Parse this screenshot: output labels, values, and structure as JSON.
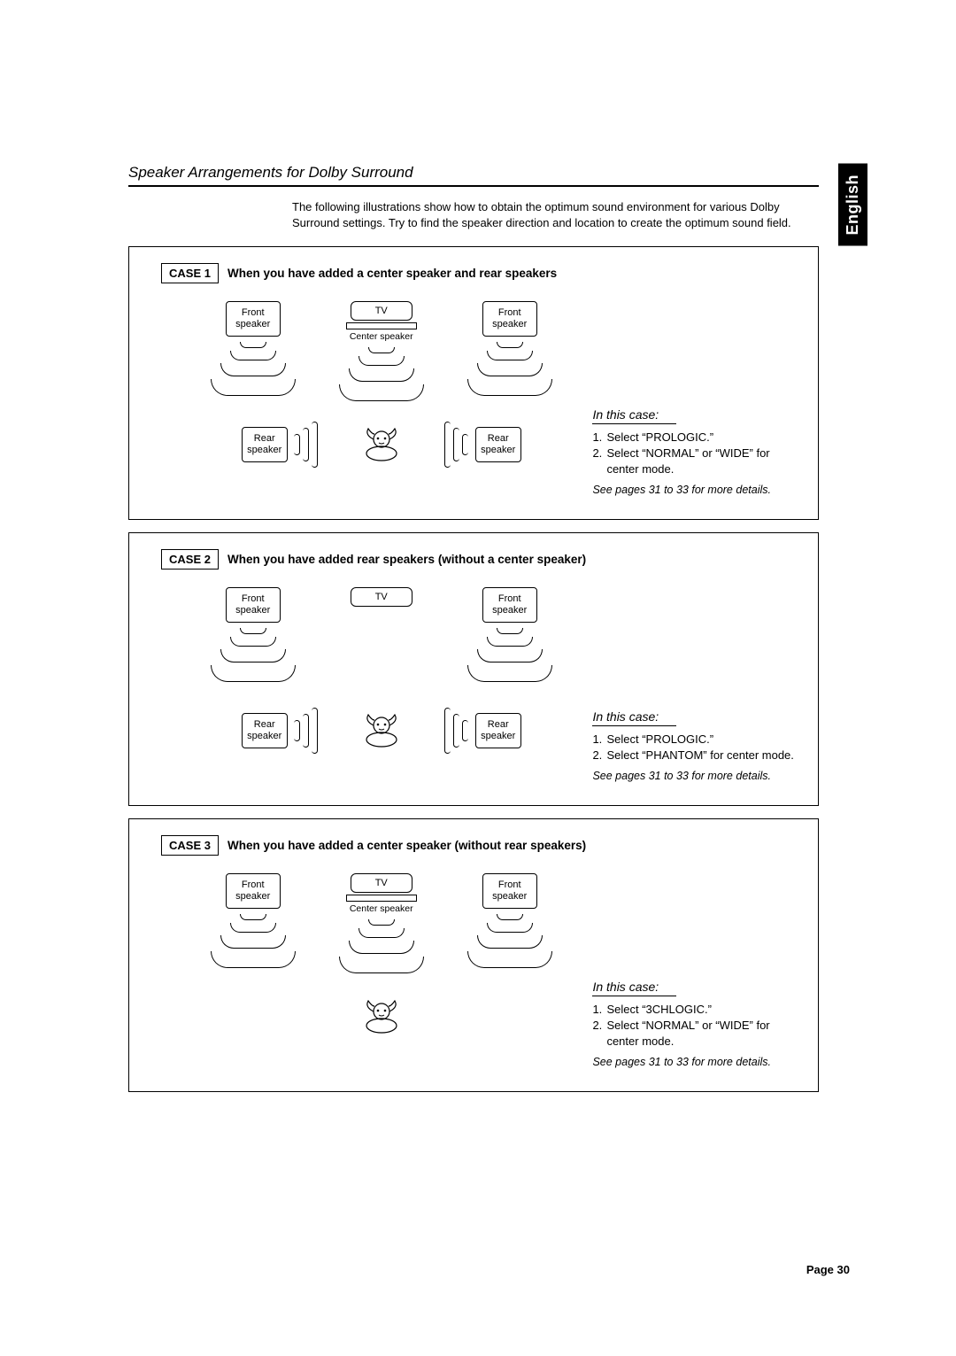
{
  "lang_tab": "English",
  "section_title": "Speaker Arrangements for Dolby Surround",
  "intro": "The following illustrations show how to obtain the optimum sound environment for various Dolby Surround settings. Try to find the speaker direction and location to create the optimum sound field.",
  "labels": {
    "front_speaker_l1": "Front",
    "front_speaker_l2": "speaker",
    "tv": "TV",
    "center_speaker": "Center speaker",
    "rear_l1": "Rear",
    "rear_l2": "speaker"
  },
  "cases": [
    {
      "badge": "CASE 1",
      "title": "When you have added a center speaker and rear speakers",
      "diagram": {
        "center": true,
        "rear": true
      },
      "in_this_case": "In this case:",
      "steps": [
        {
          "n": "1.",
          "t": "Select “PROLOGIC.”"
        },
        {
          "n": "2.",
          "t": "Select “NORMAL” or “WIDE” for center mode."
        }
      ],
      "see": "See pages 31 to 33 for more details."
    },
    {
      "badge": "CASE 2",
      "title": "When you have added rear speakers (without a center speaker)",
      "diagram": {
        "center": false,
        "rear": true
      },
      "in_this_case": "In this case:",
      "steps": [
        {
          "n": "1.",
          "t": "Select “PROLOGIC.”"
        },
        {
          "n": "2.",
          "t": "Select “PHANTOM” for center mode."
        }
      ],
      "see": "See pages 31 to 33 for more details."
    },
    {
      "badge": "CASE 3",
      "title": "When you have added a center speaker (without rear speakers)",
      "diagram": {
        "center": true,
        "rear": false
      },
      "in_this_case": "In this case:",
      "steps": [
        {
          "n": "1.",
          "t": "Select “3CHLOGIC.”"
        },
        {
          "n": "2.",
          "t": "Select “NORMAL” or “WIDE” for center mode."
        }
      ],
      "see": "See pages 31 to 33 for more details."
    }
  ],
  "page_number": "Page 30",
  "colors": {
    "text": "#000000",
    "bg": "#ffffff"
  }
}
